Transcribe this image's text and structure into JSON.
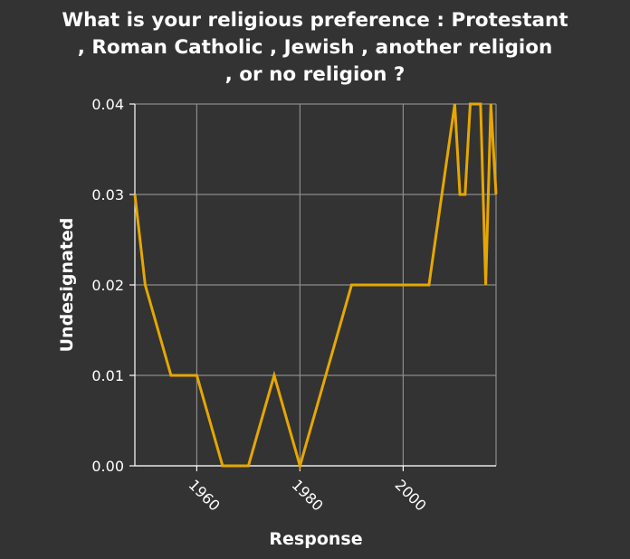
{
  "chart_data": {
    "type": "line",
    "title_lines": [
      "What is your religious preference : Protestant",
      ", Roman Catholic , Jewish , another religion",
      ", or no religion ?"
    ],
    "xlabel": "Response",
    "ylabel": "Undesignated",
    "xlim": [
      1948,
      2018
    ],
    "ylim": [
      0,
      0.04
    ],
    "x_ticks": [
      1960,
      1980,
      2000
    ],
    "x_tick_labels": [
      "1960",
      "1980",
      "2000"
    ],
    "y_ticks": [
      0,
      0.01,
      0.02,
      0.03,
      0.04
    ],
    "y_tick_labels": [
      "0.00",
      "0.01",
      "0.02",
      "0.03",
      "0.04"
    ],
    "grid": true,
    "line_color": "#e6a700",
    "background_color": "#333333",
    "grid_color": "#8c8c8c",
    "series": [
      {
        "x": [
          1948,
          1950,
          1955,
          1960,
          1965,
          1970,
          1975,
          1980,
          1985,
          1990,
          1995,
          2000,
          2005,
          2010,
          2011,
          2012,
          2013,
          2014,
          2015,
          2016,
          2017,
          2018
        ],
        "y": [
          0.03,
          0.02,
          0.01,
          0.01,
          0.0,
          0.0,
          0.01,
          0.0,
          0.01,
          0.02,
          0.02,
          0.02,
          0.02,
          0.04,
          0.03,
          0.03,
          0.04,
          0.04,
          0.04,
          0.02,
          0.04,
          0.03
        ]
      }
    ]
  }
}
